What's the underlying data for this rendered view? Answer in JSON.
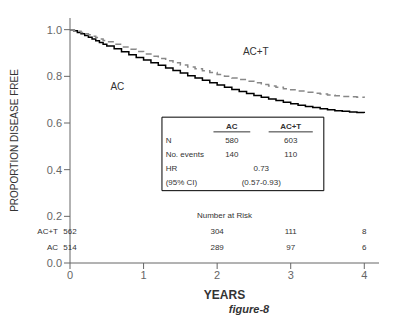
{
  "chart_data": {
    "type": "line",
    "title": "",
    "xlabel": "YEARS",
    "ylabel": "PROPORTION DISEASE FREE",
    "caption": "figure-8",
    "xlim": [
      0,
      4.2
    ],
    "ylim": [
      0,
      1.05
    ],
    "xticks": [
      0,
      1,
      2,
      3,
      4
    ],
    "yticks": [
      {
        "value": 0,
        "label": "0.0"
      },
      0.2,
      0.4,
      0.6,
      0.8,
      {
        "value": 1.0,
        "label": "1.0"
      }
    ],
    "grid": false,
    "x": [
      0,
      0.05,
      0.1,
      0.15,
      0.2,
      0.25,
      0.3,
      0.35,
      0.4,
      0.45,
      0.5,
      0.6,
      0.7,
      0.8,
      0.9,
      1.0,
      1.1,
      1.2,
      1.3,
      1.4,
      1.5,
      1.6,
      1.7,
      1.8,
      1.9,
      2.0,
      2.1,
      2.2,
      2.3,
      2.4,
      2.5,
      2.6,
      2.7,
      2.8,
      2.9,
      3.0,
      3.1,
      3.2,
      3.3,
      3.4,
      3.5,
      3.6,
      3.7,
      3.8,
      3.9,
      4.0
    ],
    "series": [
      {
        "name": "AC",
        "color": "#000000",
        "line_style": "solid",
        "values": [
          1.0,
          0.995,
          0.988,
          0.982,
          0.975,
          0.968,
          0.96,
          0.952,
          0.945,
          0.937,
          0.93,
          0.918,
          0.905,
          0.893,
          0.881,
          0.87,
          0.858,
          0.847,
          0.836,
          0.825,
          0.814,
          0.803,
          0.793,
          0.783,
          0.773,
          0.763,
          0.753,
          0.744,
          0.735,
          0.726,
          0.718,
          0.71,
          0.703,
          0.696,
          0.689,
          0.682,
          0.676,
          0.671,
          0.666,
          0.661,
          0.657,
          0.653,
          0.65,
          0.647,
          0.645,
          0.643
        ]
      },
      {
        "name": "AC+T",
        "color": "#888888",
        "line_style": "dashed",
        "values": [
          1.0,
          0.997,
          0.993,
          0.988,
          0.983,
          0.978,
          0.972,
          0.966,
          0.96,
          0.954,
          0.948,
          0.937,
          0.926,
          0.916,
          0.906,
          0.896,
          0.886,
          0.876,
          0.867,
          0.858,
          0.849,
          0.84,
          0.832,
          0.824,
          0.816,
          0.808,
          0.8,
          0.793,
          0.786,
          0.779,
          0.772,
          0.765,
          0.759,
          0.753,
          0.747,
          0.742,
          0.737,
          0.732,
          0.728,
          0.724,
          0.72,
          0.717,
          0.714,
          0.712,
          0.71,
          0.708
        ]
      }
    ],
    "table": {
      "columns": [
        "AC",
        "AC+T"
      ],
      "rows": [
        {
          "label": "N",
          "values": [
            580,
            603
          ]
        },
        {
          "label": "No. events",
          "values": [
            140,
            110
          ]
        },
        {
          "label": "HR",
          "value": 0.73
        },
        {
          "label": "(95% CI)",
          "value": "(0.57-0.93)"
        }
      ]
    },
    "number_at_risk": {
      "title": "Number at Risk",
      "x": [
        0,
        1,
        2,
        3,
        4
      ],
      "rows": [
        {
          "name": "AC+T",
          "values": [
            562,
            null,
            304,
            111,
            8
          ]
        },
        {
          "name": "AC",
          "values": [
            514,
            null,
            289,
            97,
            6
          ]
        }
      ]
    }
  }
}
